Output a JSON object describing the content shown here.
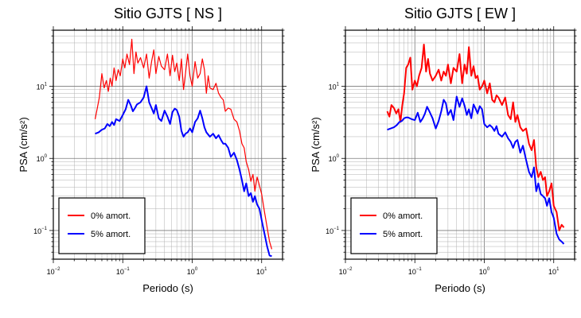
{
  "chart_data": [
    {
      "type": "line",
      "title": "Sitio GJTS [ NS ]",
      "xlabel": "Periodo (s)",
      "ylabel": "PSA (cm/s²)",
      "x_scale": "log",
      "y_scale": "log",
      "xlim": [
        0.01,
        20
      ],
      "ylim": [
        0.04,
        60
      ],
      "grid": true,
      "legend_position": "bottom-left",
      "x_ticks": [
        {
          "base": "10",
          "exp": "−2"
        },
        {
          "base": "10",
          "exp": "−1"
        },
        {
          "base": "10",
          "exp": "0"
        },
        {
          "base": "10",
          "exp": "1"
        }
      ],
      "y_ticks": [
        {
          "value": 0.1,
          "base": "10",
          "exp": "−1"
        },
        {
          "value": 1,
          "base": "10",
          "exp": "0"
        },
        {
          "value": 10,
          "base": "10",
          "exp": "1"
        }
      ],
      "series": [
        {
          "name": "0% amort.",
          "color": "#ff0000",
          "x": [
            0.04,
            0.043,
            0.046,
            0.05,
            0.054,
            0.058,
            0.062,
            0.066,
            0.07,
            0.075,
            0.08,
            0.086,
            0.092,
            0.1,
            0.107,
            0.115,
            0.125,
            0.135,
            0.145,
            0.155,
            0.165,
            0.18,
            0.2,
            0.22,
            0.24,
            0.26,
            0.28,
            0.3,
            0.33,
            0.36,
            0.4,
            0.44,
            0.48,
            0.52,
            0.56,
            0.6,
            0.65,
            0.7,
            0.75,
            0.8,
            0.86,
            0.93,
            1.0,
            1.1,
            1.2,
            1.3,
            1.4,
            1.5,
            1.6,
            1.7,
            1.8,
            2.0,
            2.2,
            2.4,
            2.6,
            2.8,
            3.0,
            3.3,
            3.6,
            4.0,
            4.4,
            4.8,
            5.2,
            5.6,
            6.0,
            6.5,
            7.0,
            7.5,
            8.0,
            8.6,
            9.3,
            10.0,
            11.0,
            12.0,
            13.0,
            14.0
          ],
          "y": [
            3.5,
            5.0,
            7.0,
            15.0,
            9.5,
            12.0,
            8.5,
            13.0,
            10.0,
            18.0,
            12.0,
            17.0,
            14.0,
            24.0,
            18.0,
            28.0,
            20.0,
            45.0,
            15.0,
            30.0,
            21.0,
            25.0,
            18.0,
            28.0,
            13.0,
            22.0,
            32.0,
            15.0,
            26.0,
            19.0,
            17.0,
            28.0,
            14.0,
            27.0,
            16.0,
            21.0,
            12.0,
            24.0,
            9.0,
            15.0,
            28.0,
            14.0,
            10.0,
            22.0,
            13.0,
            15.0,
            24.0,
            17.0,
            8.0,
            14.0,
            9.5,
            9.0,
            11.0,
            8.0,
            7.0,
            6.5,
            4.5,
            5.0,
            4.8,
            3.5,
            3.2,
            2.4,
            1.6,
            1.4,
            0.9,
            0.7,
            0.48,
            0.6,
            0.35,
            0.55,
            0.42,
            0.32,
            0.18,
            0.11,
            0.07,
            0.055
          ]
        },
        {
          "name": "5% amort.",
          "color": "#0000ff",
          "x": [
            0.04,
            0.045,
            0.05,
            0.055,
            0.06,
            0.065,
            0.07,
            0.075,
            0.08,
            0.085,
            0.09,
            0.1,
            0.11,
            0.12,
            0.13,
            0.14,
            0.15,
            0.16,
            0.18,
            0.2,
            0.22,
            0.24,
            0.26,
            0.28,
            0.3,
            0.33,
            0.36,
            0.4,
            0.44,
            0.48,
            0.52,
            0.56,
            0.6,
            0.65,
            0.7,
            0.75,
            0.8,
            0.86,
            0.93,
            1.0,
            1.1,
            1.2,
            1.3,
            1.4,
            1.5,
            1.6,
            1.8,
            2.0,
            2.2,
            2.4,
            2.6,
            2.8,
            3.0,
            3.3,
            3.6,
            4.0,
            4.4,
            4.8,
            5.2,
            5.6,
            6.0,
            6.5,
            7.0,
            7.5,
            8.0,
            8.6,
            9.3,
            10.0,
            11.0,
            12.0,
            13.0,
            14.0
          ],
          "y": [
            2.2,
            2.3,
            2.5,
            2.6,
            3.0,
            2.8,
            3.2,
            2.9,
            3.5,
            3.4,
            3.3,
            4.0,
            4.8,
            6.5,
            5.5,
            4.5,
            5.0,
            5.6,
            6.0,
            7.0,
            10.0,
            6.0,
            5.0,
            4.2,
            5.5,
            3.6,
            3.3,
            4.6,
            3.8,
            3.0,
            4.4,
            4.9,
            4.7,
            3.8,
            2.4,
            2.0,
            2.2,
            2.3,
            2.6,
            2.3,
            3.2,
            3.6,
            4.6,
            3.6,
            2.7,
            2.3,
            2.0,
            2.2,
            1.9,
            2.1,
            1.8,
            1.6,
            1.6,
            1.4,
            1.05,
            1.2,
            0.95,
            0.7,
            0.5,
            0.35,
            0.45,
            0.3,
            0.33,
            0.25,
            0.3,
            0.23,
            0.2,
            0.14,
            0.09,
            0.06,
            0.045,
            0.044
          ]
        }
      ]
    },
    {
      "type": "line",
      "title": "Sitio GJTS [ EW ]",
      "xlabel": "Periodo (s)",
      "ylabel": "PSA (cm/s²)",
      "x_scale": "log",
      "y_scale": "log",
      "xlim": [
        0.01,
        20
      ],
      "ylim": [
        0.04,
        60
      ],
      "grid": true,
      "legend_position": "bottom-left",
      "x_ticks": [
        {
          "base": "10",
          "exp": "−2"
        },
        {
          "base": "10",
          "exp": "−1"
        },
        {
          "base": "10",
          "exp": "0"
        },
        {
          "base": "10",
          "exp": "1"
        }
      ],
      "y_ticks": [
        {
          "value": 0.1,
          "base": "10",
          "exp": "−1"
        },
        {
          "value": 1,
          "base": "10",
          "exp": "0"
        },
        {
          "value": 10,
          "base": "10",
          "exp": "1"
        }
      ],
      "series": [
        {
          "name": "0% amort.",
          "color": "#ff0000",
          "x": [
            0.04,
            0.043,
            0.046,
            0.05,
            0.054,
            0.058,
            0.062,
            0.066,
            0.07,
            0.075,
            0.08,
            0.086,
            0.092,
            0.1,
            0.107,
            0.115,
            0.125,
            0.135,
            0.145,
            0.155,
            0.165,
            0.18,
            0.2,
            0.22,
            0.24,
            0.26,
            0.28,
            0.3,
            0.33,
            0.36,
            0.4,
            0.44,
            0.48,
            0.52,
            0.56,
            0.6,
            0.65,
            0.7,
            0.75,
            0.8,
            0.86,
            0.93,
            1.0,
            1.1,
            1.2,
            1.3,
            1.4,
            1.5,
            1.6,
            1.8,
            2.0,
            2.2,
            2.4,
            2.6,
            2.8,
            3.0,
            3.3,
            3.6,
            4.0,
            4.4,
            4.8,
            5.2,
            5.6,
            6.0,
            6.5,
            7.0,
            7.5,
            8.0,
            8.6,
            9.3,
            10.0,
            11.0,
            12.0,
            13.0,
            14.0
          ],
          "y": [
            4.5,
            3.8,
            5.5,
            5.0,
            4.2,
            4.8,
            3.2,
            5.5,
            8.0,
            18.0,
            20.0,
            25.0,
            9.0,
            12.0,
            10.0,
            14.0,
            18.0,
            38.0,
            16.0,
            24.0,
            15.0,
            12.0,
            14.0,
            17.0,
            12.0,
            16.0,
            14.0,
            20.0,
            11.0,
            18.0,
            16.0,
            28.0,
            11.0,
            20.0,
            15.0,
            35.0,
            14.0,
            19.0,
            13.0,
            14.0,
            9.0,
            10.0,
            12.0,
            8.0,
            11.0,
            6.5,
            6.0,
            7.5,
            7.0,
            5.5,
            7.0,
            4.0,
            3.5,
            6.0,
            3.2,
            4.0,
            2.7,
            2.4,
            2.6,
            1.6,
            1.3,
            1.8,
            0.75,
            0.55,
            0.65,
            0.5,
            0.55,
            0.3,
            0.35,
            0.45,
            0.22,
            0.18,
            0.1,
            0.12,
            0.11
          ]
        },
        {
          "name": "5% amort.",
          "color": "#0000ff",
          "x": [
            0.04,
            0.045,
            0.05,
            0.055,
            0.06,
            0.065,
            0.07,
            0.075,
            0.08,
            0.09,
            0.1,
            0.11,
            0.12,
            0.13,
            0.14,
            0.15,
            0.16,
            0.18,
            0.2,
            0.22,
            0.24,
            0.26,
            0.28,
            0.3,
            0.33,
            0.36,
            0.4,
            0.44,
            0.48,
            0.52,
            0.56,
            0.6,
            0.65,
            0.7,
            0.75,
            0.8,
            0.86,
            0.93,
            1.0,
            1.1,
            1.2,
            1.3,
            1.4,
            1.5,
            1.6,
            1.8,
            2.0,
            2.2,
            2.4,
            2.6,
            2.8,
            3.0,
            3.3,
            3.6,
            4.0,
            4.4,
            4.8,
            5.2,
            5.6,
            6.0,
            6.5,
            7.0,
            7.5,
            8.0,
            8.6,
            9.3,
            10.0,
            11.0,
            12.0,
            13.0,
            14.0
          ],
          "y": [
            2.5,
            2.6,
            2.7,
            2.9,
            3.2,
            3.3,
            3.6,
            3.7,
            3.7,
            3.5,
            3.4,
            4.3,
            3.2,
            3.6,
            4.2,
            5.2,
            4.6,
            3.6,
            2.6,
            3.3,
            4.5,
            6.5,
            5.8,
            4.0,
            4.7,
            3.4,
            7.2,
            5.2,
            6.8,
            5.4,
            4.0,
            4.8,
            3.6,
            5.6,
            4.9,
            4.2,
            5.3,
            4.8,
            3.0,
            2.7,
            2.9,
            2.7,
            2.4,
            2.8,
            2.2,
            2.0,
            2.3,
            1.9,
            1.7,
            1.4,
            1.7,
            1.8,
            1.2,
            1.5,
            0.95,
            0.65,
            0.55,
            0.75,
            0.35,
            0.45,
            0.32,
            0.3,
            0.28,
            0.22,
            0.28,
            0.18,
            0.15,
            0.09,
            0.075,
            0.07,
            0.065
          ]
        }
      ]
    }
  ]
}
